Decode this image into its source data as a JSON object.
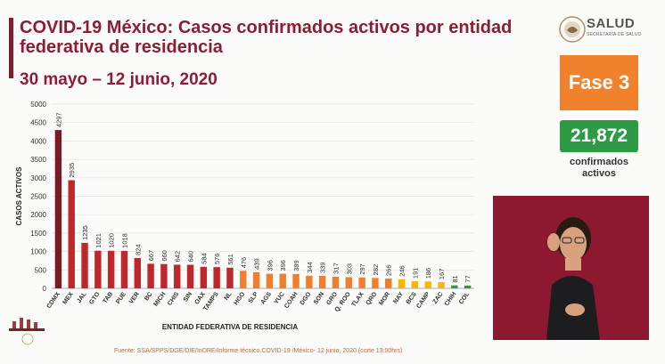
{
  "header": {
    "title": "COVID-19 México: Casos confirmados activos por entidad federativa de residencia",
    "subtitle": "30 mayo – 12 junio, 2020"
  },
  "logo": {
    "name": "SALUD",
    "sub": "SECRETARÍA DE SALUD"
  },
  "phase": {
    "label": "Fase 3",
    "color": "#f0822e"
  },
  "summary": {
    "count": "21,872",
    "label": "confirmados activos",
    "color": "#2d9b46"
  },
  "source": "Fuente: SSA/SPPS/DGE/DIE/InDRE/Informe técnico.COVID-19 /México- 12 junio, 2020 (corte 13:00hrs)",
  "chart_data": {
    "type": "bar",
    "xlabel": "ENTIDAD FEDERATIVA DE RESIDENCIA",
    "ylabel": "CASOS ACTIVOS",
    "ylim": [
      0,
      5000
    ],
    "yticks": [
      0,
      500,
      1000,
      1500,
      2000,
      2500,
      3000,
      3500,
      4000,
      4500,
      5000
    ],
    "grid": true,
    "categories": [
      "CDMX",
      "MEX",
      "JAL",
      "GTO",
      "TAB",
      "PUE",
      "VER",
      "BC",
      "MICH",
      "CHIS",
      "SIN",
      "OAX",
      "TAMPS",
      "NL",
      "HGO",
      "SLP",
      "AGS",
      "YUC",
      "COAH",
      "DGO",
      "SON",
      "GRO",
      "Q. ROO",
      "TLAX",
      "QRO",
      "MOR",
      "NAY",
      "BCS",
      "CAMP",
      "ZAC",
      "CHIH",
      "COL"
    ],
    "values": [
      4297,
      2935,
      1235,
      1021,
      1020,
      1018,
      824,
      667,
      660,
      642,
      640,
      584,
      576,
      561,
      476,
      439,
      396,
      396,
      389,
      344,
      339,
      317,
      303,
      297,
      282,
      266,
      246,
      191,
      186,
      167,
      81,
      77
    ],
    "colors": [
      "#7a1a24",
      "#c0272d",
      "#c0272d",
      "#c0272d",
      "#c0272d",
      "#c0272d",
      "#c0272d",
      "#c0272d",
      "#c0272d",
      "#c0272d",
      "#c0272d",
      "#c0272d",
      "#c0272d",
      "#c0272d",
      "#f07f2d",
      "#f07f2d",
      "#f07f2d",
      "#f07f2d",
      "#f07f2d",
      "#f07f2d",
      "#f07f2d",
      "#f07f2d",
      "#f07f2d",
      "#f07f2d",
      "#f07f2d",
      "#f07f2d",
      "#f5b700",
      "#f5b700",
      "#f5b700",
      "#f5b700",
      "#2d9b46",
      "#2d9b46"
    ]
  }
}
